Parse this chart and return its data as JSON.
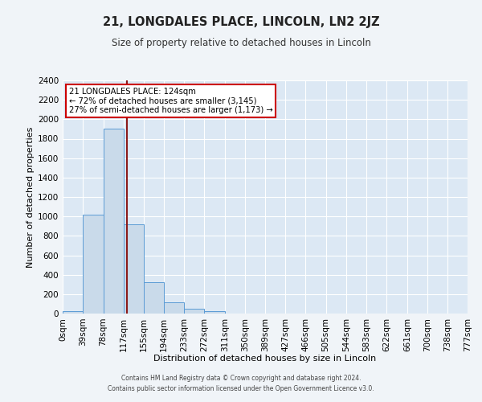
{
  "title": "21, LONGDALES PLACE, LINCOLN, LN2 2JZ",
  "subtitle": "Size of property relative to detached houses in Lincoln",
  "xlabel": "Distribution of detached houses by size in Lincoln",
  "ylabel": "Number of detached properties",
  "bin_labels": [
    "0sqm",
    "39sqm",
    "78sqm",
    "117sqm",
    "155sqm",
    "194sqm",
    "233sqm",
    "272sqm",
    "311sqm",
    "350sqm",
    "389sqm",
    "427sqm",
    "466sqm",
    "505sqm",
    "544sqm",
    "583sqm",
    "622sqm",
    "661sqm",
    "700sqm",
    "738sqm",
    "777sqm"
  ],
  "bin_edges": [
    0,
    39,
    78,
    117,
    155,
    194,
    233,
    272,
    311,
    350,
    389,
    427,
    466,
    505,
    544,
    583,
    622,
    661,
    700,
    738,
    777
  ],
  "bar_heights": [
    25,
    1020,
    1900,
    920,
    320,
    115,
    50,
    25,
    0,
    0,
    0,
    0,
    0,
    0,
    0,
    0,
    0,
    0,
    0,
    0
  ],
  "bar_color": "#c9daea",
  "bar_edge_color": "#5b9bd5",
  "ylim": [
    0,
    2400
  ],
  "yticks": [
    0,
    200,
    400,
    600,
    800,
    1000,
    1200,
    1400,
    1600,
    1800,
    2000,
    2200,
    2400
  ],
  "property_line_x": 124,
  "property_line_color": "#8b1a1a",
  "annotation_title": "21 LONGDALES PLACE: 124sqm",
  "annotation_line1": "← 72% of detached houses are smaller (3,145)",
  "annotation_line2": "27% of semi-detached houses are larger (1,173) →",
  "annotation_box_facecolor": "#ffffff",
  "annotation_box_edgecolor": "#cc0000",
  "fig_facecolor": "#f0f4f8",
  "plot_facecolor": "#dce8f4",
  "grid_color": "#ffffff",
  "footer1": "Contains HM Land Registry data © Crown copyright and database right 2024.",
  "footer2": "Contains public sector information licensed under the Open Government Licence v3.0."
}
